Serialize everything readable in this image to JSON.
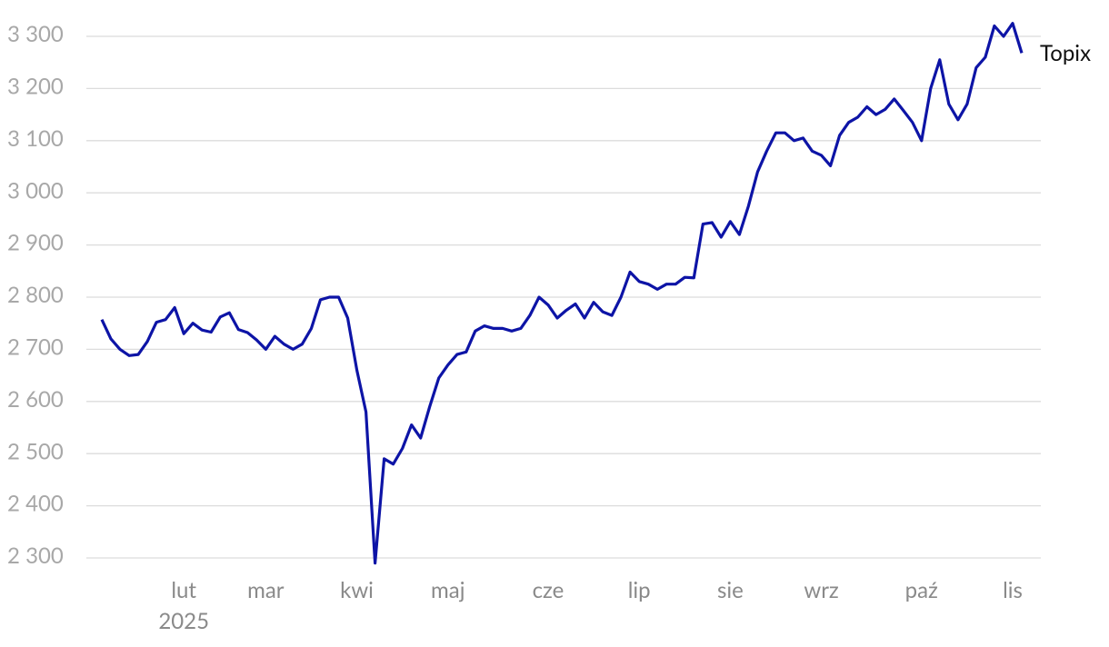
{
  "chart_data": {
    "type": "line",
    "categories": [
      null,
      null,
      null,
      null,
      null,
      null,
      null,
      null,
      null,
      "lut",
      null,
      null,
      null,
      null,
      null,
      null,
      null,
      null,
      "mar",
      null,
      null,
      null,
      null,
      null,
      null,
      null,
      null,
      null,
      "kwi",
      null,
      null,
      null,
      null,
      null,
      null,
      null,
      null,
      null,
      "maj",
      null,
      null,
      null,
      null,
      null,
      null,
      null,
      null,
      null,
      null,
      "cze",
      null,
      null,
      null,
      null,
      null,
      null,
      null,
      null,
      null,
      "lip",
      null,
      null,
      null,
      null,
      null,
      null,
      null,
      null,
      null,
      "sie",
      null,
      null,
      null,
      null,
      null,
      null,
      null,
      null,
      null,
      "wrz",
      null,
      null,
      null,
      null,
      null,
      null,
      null,
      null,
      null,
      null,
      "paź",
      null,
      null,
      null,
      null,
      null,
      null,
      null,
      null,
      null,
      "lis",
      null
    ],
    "year_label": "2025",
    "series": [
      {
        "name": "Topix",
        "color": "#0d14a6",
        "values": [
          2757,
          2720,
          2700,
          2688,
          2690,
          2715,
          2752,
          2757,
          2780,
          2730,
          2750,
          2737,
          2733,
          2762,
          2770,
          2738,
          2732,
          2718,
          2700,
          2725,
          2710,
          2700,
          2710,
          2740,
          2795,
          2800,
          2800,
          2760,
          2660,
          2580,
          2290,
          2490,
          2480,
          2510,
          2555,
          2530,
          2590,
          2645,
          2670,
          2690,
          2695,
          2735,
          2745,
          2740,
          2740,
          2735,
          2740,
          2765,
          2800,
          2785,
          2760,
          2775,
          2787,
          2760,
          2790,
          2772,
          2765,
          2800,
          2848,
          2830,
          2825,
          2815,
          2825,
          2825,
          2838,
          2837,
          2940,
          2943,
          2915,
          2945,
          2920,
          2975,
          3040,
          3080,
          3115,
          3115,
          3100,
          3105,
          3080,
          3072,
          3052,
          3110,
          3135,
          3145,
          3165,
          3150,
          3160,
          3180,
          3158,
          3135,
          3100,
          3200,
          3255,
          3170,
          3140,
          3170,
          3240,
          3260,
          3320,
          3300,
          3325,
          3268
        ]
      }
    ],
    "ylim": [
      2280,
      3340
    ],
    "yticks": [
      {
        "value": 2300,
        "label": "2 300"
      },
      {
        "value": 2400,
        "label": "2 400"
      },
      {
        "value": 2500,
        "label": "2 500"
      },
      {
        "value": 2600,
        "label": "2 600"
      },
      {
        "value": 2700,
        "label": "2 700"
      },
      {
        "value": 2800,
        "label": "2 800"
      },
      {
        "value": 2900,
        "label": "2 900"
      },
      {
        "value": 3000,
        "label": "3 000"
      },
      {
        "value": 3100,
        "label": "3 100"
      },
      {
        "value": 3200,
        "label": "3 200"
      },
      {
        "value": 3300,
        "label": "3 300"
      }
    ],
    "grid": true
  }
}
